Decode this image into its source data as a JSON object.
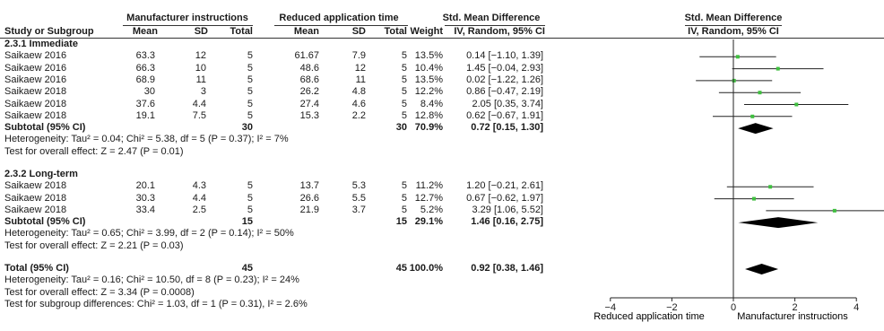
{
  "header": {
    "group1": "Manufacturer instructions",
    "group2": "Reduced application time",
    "smd": "Std. Mean Difference",
    "smd_plot": "Std. Mean Difference",
    "study": "Study or Subgroup",
    "mean1": "Mean",
    "sd1": "SD",
    "total1": "Total",
    "mean2": "Mean",
    "sd2": "SD",
    "total2": "Total",
    "weight": "Weight",
    "method": "IV, Random, 95% CI",
    "method_plot": "IV, Random, 95% CI"
  },
  "subgroups": [
    {
      "title": "2.3.1 Immediate",
      "studies": [
        {
          "study": "Saikaew 2016",
          "m1": "63.3",
          "sd1": "12",
          "n1": "5",
          "m2": "61.67",
          "sd2": "7.9",
          "n2": "5",
          "weight": "13.5%",
          "ci": "0.14 [−1.10, 1.39]",
          "est": 0.14,
          "lo": -1.1,
          "hi": 1.39
        },
        {
          "study": "Saikaew 2016",
          "m1": "66.3",
          "sd1": "10",
          "n1": "5",
          "m2": "48.6",
          "sd2": "12",
          "n2": "5",
          "weight": "10.4%",
          "ci": "1.45 [−0.04, 2.93]",
          "est": 1.45,
          "lo": -0.04,
          "hi": 2.93
        },
        {
          "study": "Saikaew 2016",
          "m1": "68.9",
          "sd1": "11",
          "n1": "5",
          "m2": "68.6",
          "sd2": "11",
          "n2": "5",
          "weight": "13.5%",
          "ci": "0.02 [−1.22, 1.26]",
          "est": 0.02,
          "lo": -1.22,
          "hi": 1.26
        },
        {
          "study": "Saikaew 2018",
          "m1": "30",
          "sd1": "3",
          "n1": "5",
          "m2": "26.2",
          "sd2": "4.8",
          "n2": "5",
          "weight": "12.2%",
          "ci": "0.86 [−0.47, 2.19]",
          "est": 0.86,
          "lo": -0.47,
          "hi": 2.19
        },
        {
          "study": "Saikaew 2018",
          "m1": "37.6",
          "sd1": "4.4",
          "n1": "5",
          "m2": "27.4",
          "sd2": "4.6",
          "n2": "5",
          "weight": "8.4%",
          "ci": "2.05 [0.35, 3.74]",
          "est": 2.05,
          "lo": 0.35,
          "hi": 3.74
        },
        {
          "study": "Saikaew 2018",
          "m1": "19.1",
          "sd1": "7.5",
          "n1": "5",
          "m2": "15.3",
          "sd2": "2.2",
          "n2": "5",
          "weight": "12.8%",
          "ci": "0.62 [−0.67, 1.91]",
          "est": 0.62,
          "lo": -0.67,
          "hi": 1.91
        }
      ],
      "subtotal": {
        "label": "Subtotal (95% CI)",
        "n1": "30",
        "n2": "30",
        "weight": "70.9%",
        "ci": "0.72 [0.15, 1.30]",
        "est": 0.72,
        "lo": 0.15,
        "hi": 1.3
      },
      "heterogeneity": "Heterogeneity: Tau² = 0.04; Chi² = 5.38, df = 5 (P = 0.37); I² = 7%",
      "overall": "Test for overall effect: Z = 2.47 (P = 0.01)"
    },
    {
      "title": "2.3.2 Long-term",
      "studies": [
        {
          "study": "Saikaew 2018",
          "m1": "20.1",
          "sd1": "4.3",
          "n1": "5",
          "m2": "13.7",
          "sd2": "5.3",
          "n2": "5",
          "weight": "11.2%",
          "ci": "1.20 [−0.21, 2.61]",
          "est": 1.2,
          "lo": -0.21,
          "hi": 2.61
        },
        {
          "study": "Saikaew 2018",
          "m1": "30.3",
          "sd1": "4.4",
          "n1": "5",
          "m2": "26.6",
          "sd2": "5.5",
          "n2": "5",
          "weight": "12.7%",
          "ci": "0.67 [−0.62, 1.97]",
          "est": 0.67,
          "lo": -0.62,
          "hi": 1.97
        },
        {
          "study": "Saikaew 2018",
          "m1": "33.4",
          "sd1": "2.5",
          "n1": "5",
          "m2": "21.9",
          "sd2": "3.7",
          "n2": "5",
          "weight": "5.2%",
          "ci": "3.29 [1.06, 5.52]",
          "est": 3.29,
          "lo": 1.06,
          "hi": 5.52
        }
      ],
      "subtotal": {
        "label": "Subtotal (95% CI)",
        "n1": "15",
        "n2": "15",
        "weight": "29.1%",
        "ci": "1.46 [0.16, 2.75]",
        "est": 1.46,
        "lo": 0.16,
        "hi": 2.75
      },
      "heterogeneity": "Heterogeneity: Tau² = 0.65; Chi² = 3.99, df = 2 (P = 0.14); I² = 50%",
      "overall": "Test for overall effect: Z = 2.21 (P = 0.03)"
    }
  ],
  "total": {
    "label": "Total (95% CI)",
    "n1": "45",
    "n2": "45",
    "weight": "100.0%",
    "ci": "0.92 [0.38, 1.46]",
    "est": 0.92,
    "lo": 0.38,
    "hi": 1.46
  },
  "footer": {
    "heterogeneity": "Heterogeneity: Tau² = 0.16; Chi² = 10.50, df = 8 (P = 0.23); I² = 24%",
    "overall": "Test for overall effect: Z = 3.34 (P = 0.0008)",
    "subgroup": "Test for subgroup differences: Chi² = 1.03, df = 1 (P = 0.31), I² = 2.6%"
  },
  "colors": {
    "marker": "#3fbf3f",
    "diamond": "#000000",
    "line": "#333333"
  },
  "chart_data": {
    "type": "scatter",
    "subtype": "forest-plot",
    "title": "Std. Mean Difference",
    "subtitle": "IV, Random, 95% CI",
    "xlim": [
      -4,
      4
    ],
    "xticks": [
      -4,
      -2,
      0,
      2,
      4
    ],
    "xtick_labels": [
      "−4",
      "−2",
      "0",
      "2",
      "4"
    ],
    "xlabel_left": "Reduced application time",
    "xlabel_right": "Manufacturer instructions",
    "grid": false
  }
}
